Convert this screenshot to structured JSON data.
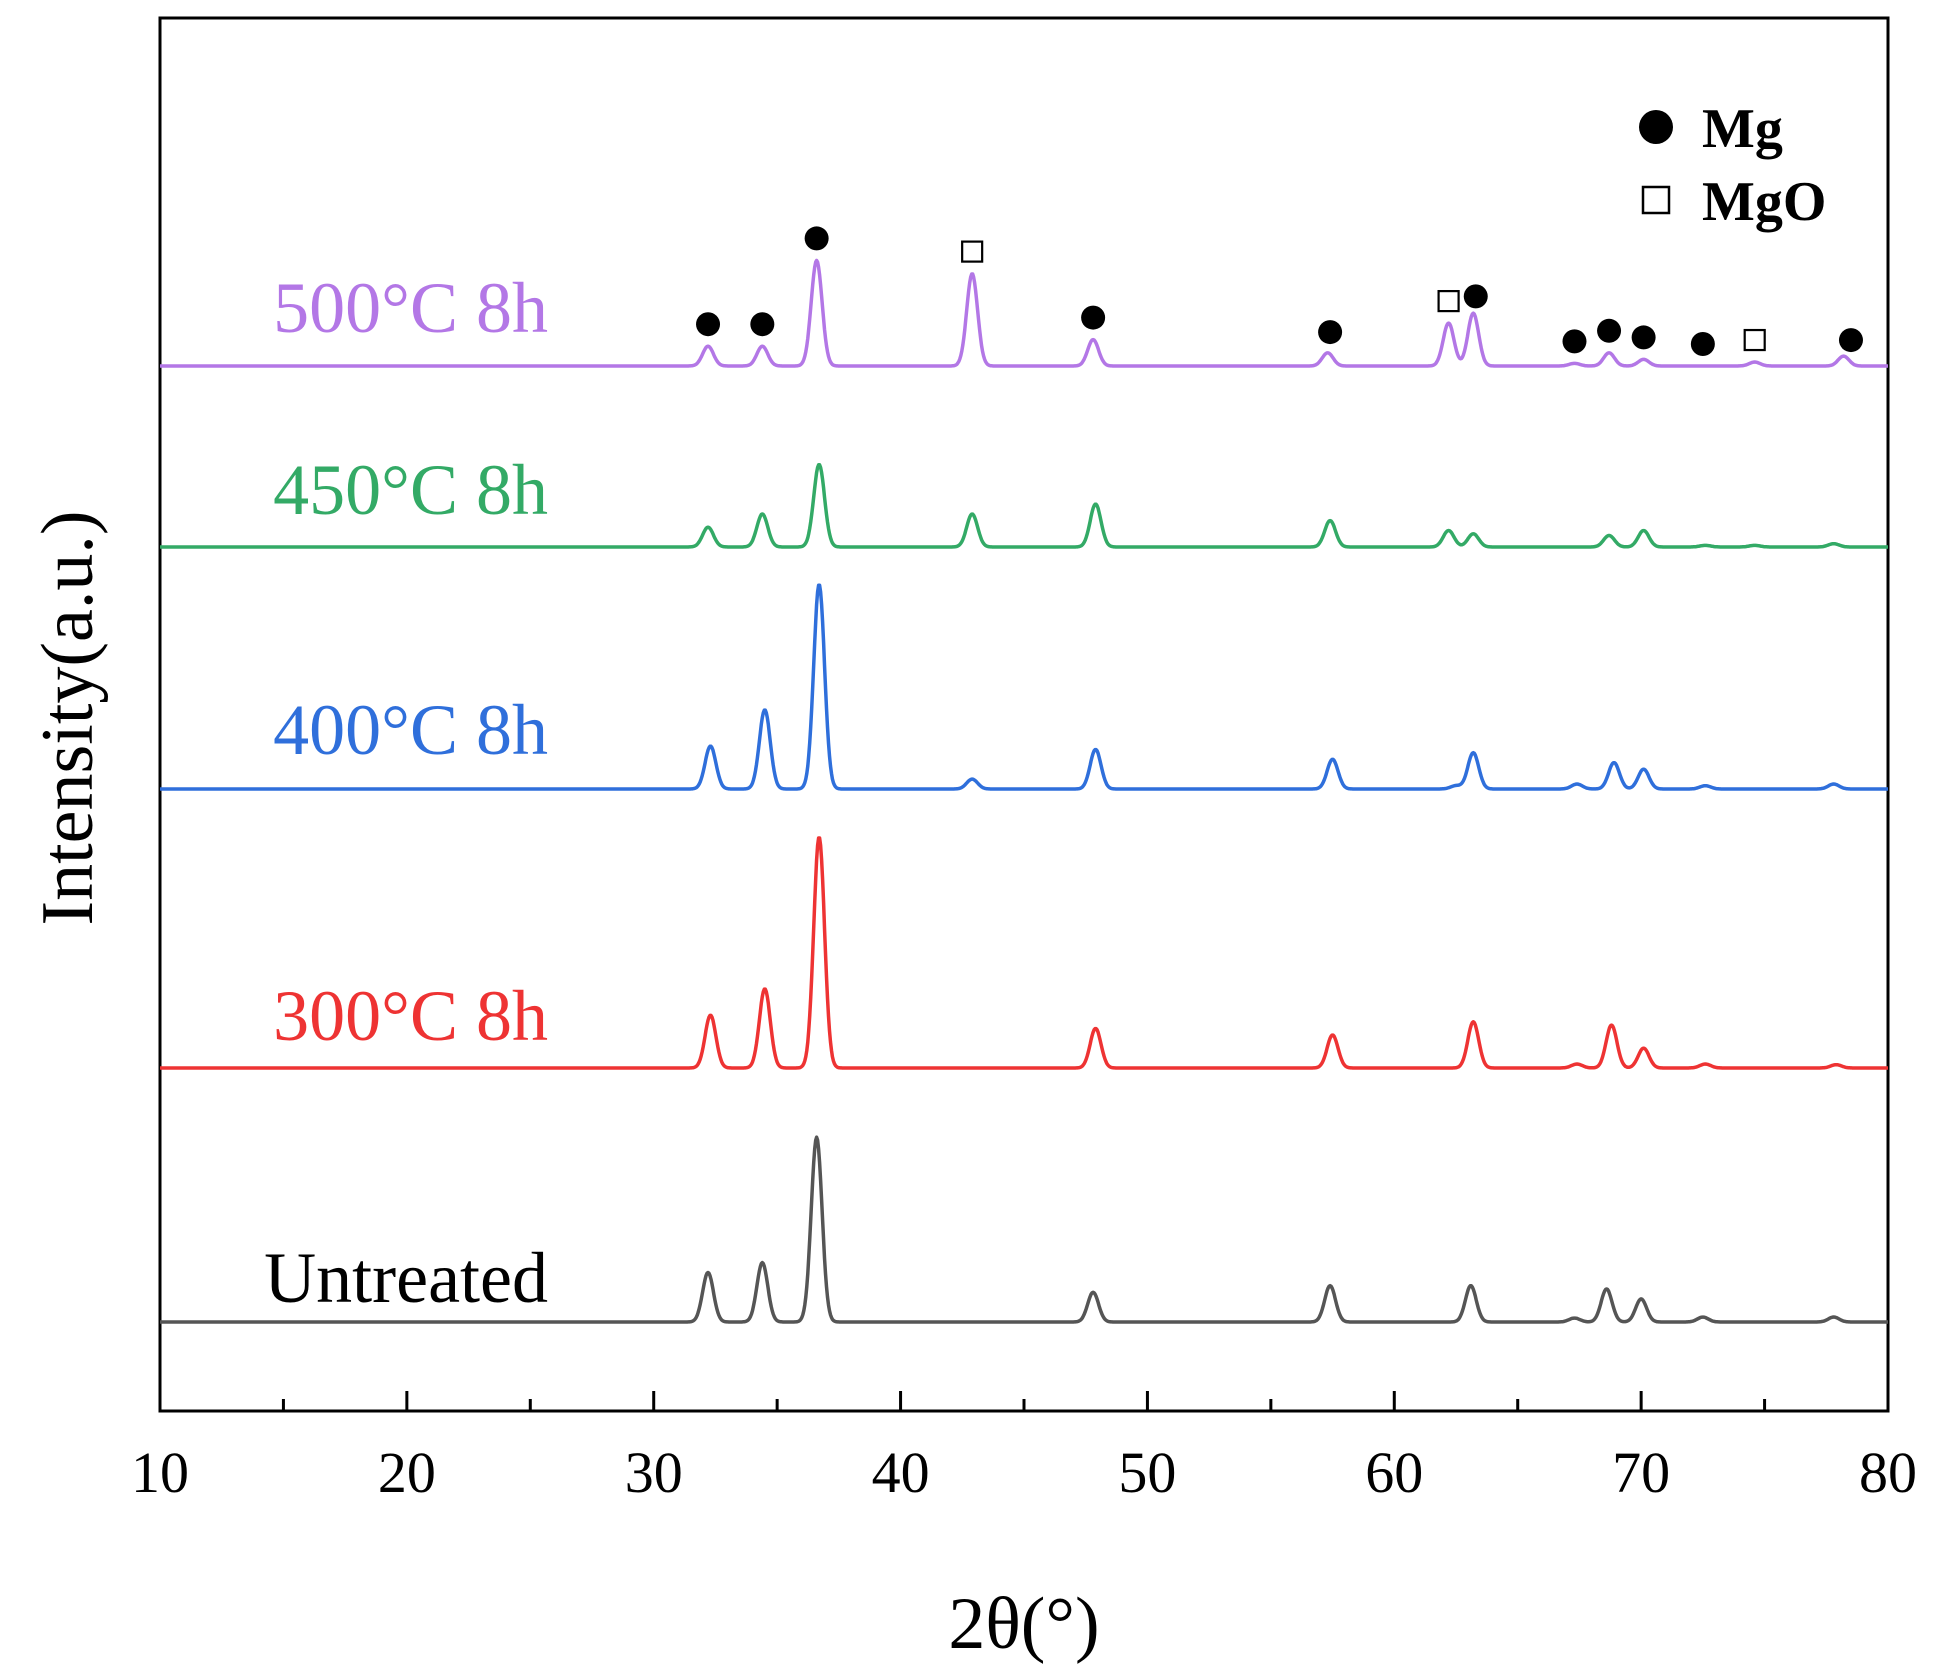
{
  "chart_data": {
    "type": "line",
    "xlabel": "2θ(°)",
    "ylabel": "Intensity(a.u.)",
    "xlim": [
      10,
      80
    ],
    "x_ticks": [
      "10",
      "20",
      "30",
      "40",
      "50",
      "60",
      "70",
      "80"
    ],
    "grid": false,
    "legend": {
      "placement": "top-right",
      "entries": [
        {
          "marker": "filled-circle",
          "label": "Mg"
        },
        {
          "marker": "open-square",
          "label": "MgO"
        }
      ]
    },
    "series": [
      {
        "name": "Untreated",
        "color": "#555555",
        "peaks": [
          [
            32.2,
            15
          ],
          [
            34.4,
            18
          ],
          [
            36.6,
            56
          ],
          [
            47.8,
            9
          ],
          [
            57.4,
            11
          ],
          [
            63.1,
            11
          ],
          [
            67.3,
            1.2
          ],
          [
            68.6,
            10
          ],
          [
            70.0,
            7
          ],
          [
            72.5,
            1.5
          ],
          [
            77.8,
            1.5
          ]
        ]
      },
      {
        "name": "300°C 8h",
        "color": "#ee3333",
        "peaks": [
          [
            32.3,
            16
          ],
          [
            34.5,
            24
          ],
          [
            36.7,
            70
          ],
          [
            47.9,
            12
          ],
          [
            57.5,
            10
          ],
          [
            63.2,
            14
          ],
          [
            67.4,
            1.2
          ],
          [
            68.8,
            13
          ],
          [
            70.1,
            6
          ],
          [
            72.6,
            1.2
          ],
          [
            77.9,
            1.0
          ]
        ]
      },
      {
        "name": "400°C 8h",
        "color": "#2f6fdb",
        "peaks": [
          [
            32.3,
            13
          ],
          [
            34.5,
            24
          ],
          [
            36.7,
            62
          ],
          [
            42.9,
            3
          ],
          [
            47.9,
            12
          ],
          [
            57.5,
            9
          ],
          [
            62.5,
            1
          ],
          [
            63.2,
            11
          ],
          [
            67.4,
            1.5
          ],
          [
            68.9,
            8
          ],
          [
            70.1,
            6
          ],
          [
            72.6,
            1
          ],
          [
            77.8,
            1.5
          ]
        ]
      },
      {
        "name": "450°C 8h",
        "color": "#33aa66",
        "peaks": [
          [
            32.2,
            6
          ],
          [
            34.4,
            10
          ],
          [
            36.7,
            25
          ],
          [
            42.9,
            10
          ],
          [
            47.9,
            13
          ],
          [
            57.4,
            8
          ],
          [
            62.2,
            5
          ],
          [
            63.2,
            4
          ],
          [
            68.7,
            3.5
          ],
          [
            70.1,
            5
          ],
          [
            72.6,
            0.5
          ],
          [
            74.6,
            0.5
          ],
          [
            77.8,
            1.0
          ]
        ]
      },
      {
        "name": "500°C 8h",
        "color": "#b377e6",
        "peaks": [
          [
            32.2,
            6
          ],
          [
            34.4,
            6
          ],
          [
            36.6,
            32
          ],
          [
            42.9,
            28
          ],
          [
            47.8,
            8
          ],
          [
            57.3,
            4
          ],
          [
            62.2,
            13
          ],
          [
            63.2,
            16
          ],
          [
            67.3,
            0.8
          ],
          [
            68.7,
            4
          ],
          [
            70.1,
            2
          ],
          [
            74.6,
            1.2
          ],
          [
            78.2,
            3
          ]
        ]
      }
    ],
    "phase_markers": {
      "Mg": [
        32.2,
        34.4,
        36.6,
        47.8,
        57.4,
        63.3,
        67.3,
        68.7,
        70.1,
        72.5,
        78.5
      ],
      "MgO": [
        42.9,
        62.2,
        74.6
      ]
    }
  }
}
